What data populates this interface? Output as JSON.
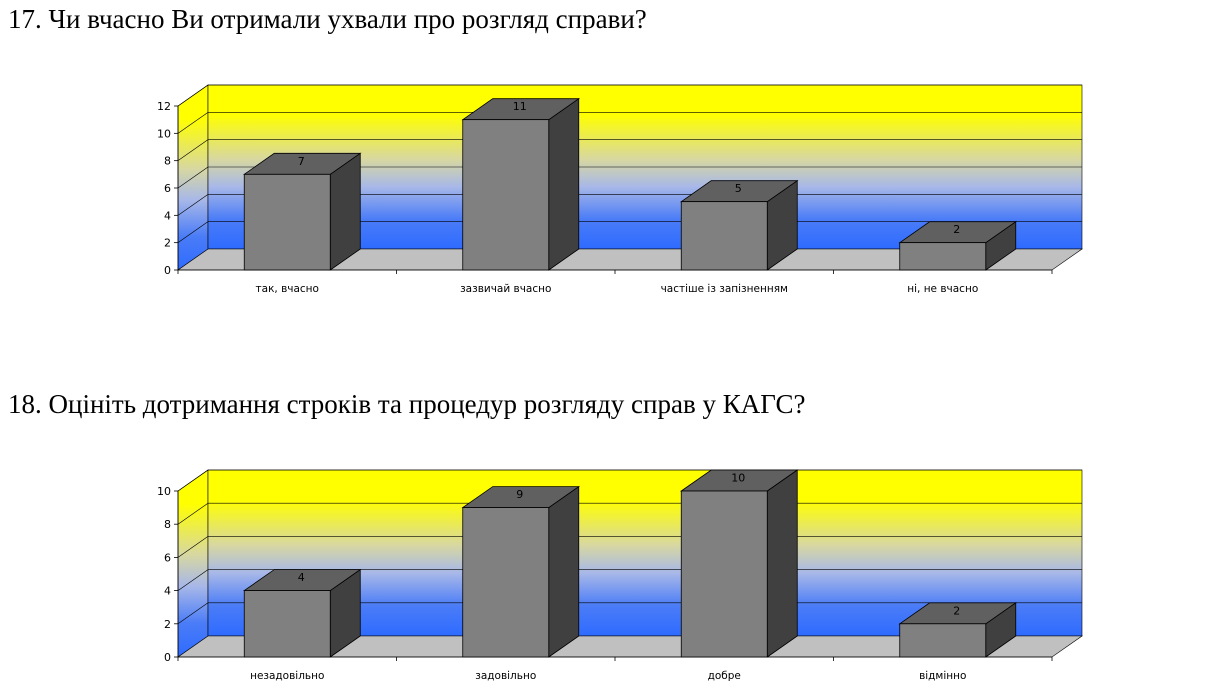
{
  "questions": [
    {
      "title": "17. Чи вчасно Ви отримали ухвали про розгляд справи?"
    },
    {
      "title": "18. Оцініть дотримання строків та процедур розгляду справ у КАГС?"
    }
  ],
  "chart_data": [
    {
      "type": "bar",
      "title": "17. Чи вчасно Ви отримали ухвали про розгляд справи?",
      "categories": [
        "так, вчасно",
        "зазвичай вчасно",
        "частіше із запізненням",
        "ні, не вчасно"
      ],
      "values": [
        7,
        11,
        5,
        2
      ],
      "ylim": [
        0,
        12
      ],
      "yticks": [
        0,
        2,
        4,
        6,
        8,
        10,
        12
      ],
      "grid": true,
      "style": "3d",
      "colors": {
        "bar_front": "#808080",
        "bar_side": "#404040",
        "bar_top": "#606060",
        "floor": "#c0c0c0",
        "wall_top": "#ffff00",
        "wall_bottom": "#2e6bff"
      }
    },
    {
      "type": "bar",
      "title": "18. Оцініть дотримання строків та процедур розгляду справ у КАГС?",
      "categories": [
        "незадовільно",
        "задовільно",
        "добре",
        "відмінно"
      ],
      "values": [
        4,
        9,
        10,
        2
      ],
      "ylim": [
        0,
        10
      ],
      "yticks": [
        0,
        2,
        4,
        6,
        8,
        10
      ],
      "grid": true,
      "style": "3d",
      "colors": {
        "bar_front": "#808080",
        "bar_side": "#404040",
        "bar_top": "#606060",
        "floor": "#c0c0c0",
        "wall_top": "#ffff00",
        "wall_bottom": "#2e6bff"
      }
    }
  ]
}
